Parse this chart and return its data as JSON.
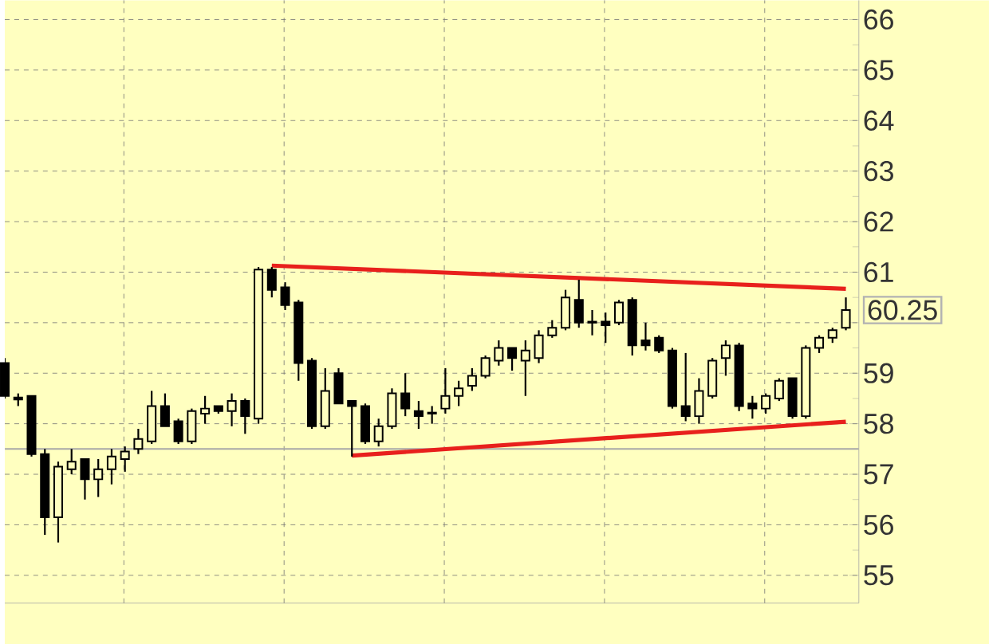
{
  "chart_data": {
    "type": "candlestick",
    "categories": [
      null,
      null,
      null,
      null,
      null,
      null,
      null,
      null,
      null,
      null,
      null,
      null,
      null,
      null,
      null,
      null,
      null,
      null,
      null,
      null,
      null,
      null,
      null,
      null,
      null,
      null,
      null,
      null,
      null,
      null,
      null,
      null,
      null,
      null,
      null,
      null,
      null,
      null,
      null,
      null,
      null,
      null,
      null,
      null,
      null,
      null,
      null,
      null,
      null,
      null,
      null,
      null,
      null,
      null,
      null,
      null,
      null,
      null,
      null,
      null,
      null,
      null,
      null,
      null
    ],
    "ohlc": [
      [
        59.2,
        59.3,
        58.5,
        58.55
      ],
      [
        58.52,
        58.6,
        58.35,
        58.48
      ],
      [
        58.55,
        58.55,
        57.35,
        57.4
      ],
      [
        57.4,
        57.5,
        55.8,
        56.15
      ],
      [
        56.15,
        57.25,
        55.65,
        57.15
      ],
      [
        57.1,
        57.5,
        57.0,
        57.25
      ],
      [
        57.3,
        57.3,
        56.5,
        56.9
      ],
      [
        56.9,
        57.3,
        56.55,
        57.1
      ],
      [
        57.1,
        57.5,
        56.8,
        57.35
      ],
      [
        57.3,
        57.55,
        57.05,
        57.45
      ],
      [
        57.5,
        57.9,
        57.4,
        57.7
      ],
      [
        57.65,
        58.65,
        57.6,
        58.35
      ],
      [
        58.35,
        58.6,
        57.95,
        57.95
      ],
      [
        58.05,
        58.1,
        57.6,
        57.65
      ],
      [
        57.65,
        58.3,
        57.6,
        58.25
      ],
      [
        58.2,
        58.55,
        58.0,
        58.3
      ],
      [
        58.35,
        58.35,
        58.2,
        58.25
      ],
      [
        58.25,
        58.6,
        57.95,
        58.45
      ],
      [
        58.45,
        58.5,
        57.8,
        58.15
      ],
      [
        58.1,
        61.1,
        58.0,
        61.05
      ],
      [
        61.05,
        61.1,
        60.5,
        60.65
      ],
      [
        60.7,
        60.8,
        60.25,
        60.35
      ],
      [
        60.4,
        60.45,
        58.85,
        59.2
      ],
      [
        59.25,
        59.3,
        57.9,
        57.95
      ],
      [
        57.95,
        59.1,
        57.9,
        58.65
      ],
      [
        59.0,
        59.1,
        58.4,
        58.4
      ],
      [
        58.45,
        58.45,
        57.35,
        58.35
      ],
      [
        58.35,
        58.4,
        57.6,
        57.65
      ],
      [
        57.65,
        58.1,
        57.55,
        57.95
      ],
      [
        57.95,
        58.7,
        57.9,
        58.6
      ],
      [
        58.6,
        59.0,
        58.15,
        58.3
      ],
      [
        58.25,
        58.45,
        57.9,
        58.15
      ],
      [
        58.22,
        58.35,
        58.0,
        58.2
      ],
      [
        58.3,
        59.1,
        58.2,
        58.55
      ],
      [
        58.55,
        58.85,
        58.35,
        58.7
      ],
      [
        58.75,
        59.1,
        58.65,
        58.95
      ],
      [
        58.95,
        59.35,
        58.9,
        59.3
      ],
      [
        59.25,
        59.65,
        59.15,
        59.5
      ],
      [
        59.5,
        59.5,
        59.05,
        59.3
      ],
      [
        59.25,
        59.65,
        58.55,
        59.45
      ],
      [
        59.3,
        59.85,
        59.2,
        59.75
      ],
      [
        59.75,
        60.05,
        59.7,
        59.9
      ],
      [
        59.9,
        60.65,
        59.85,
        60.5
      ],
      [
        60.45,
        60.85,
        59.9,
        60.0
      ],
      [
        60.02,
        60.25,
        59.75,
        60.0
      ],
      [
        60.02,
        60.2,
        59.6,
        59.95
      ],
      [
        60.0,
        60.45,
        59.95,
        60.4
      ],
      [
        60.45,
        60.5,
        59.35,
        59.55
      ],
      [
        59.65,
        60.0,
        59.45,
        59.55
      ],
      [
        59.7,
        59.75,
        59.4,
        59.45
      ],
      [
        59.45,
        59.5,
        58.3,
        58.35
      ],
      [
        58.35,
        59.4,
        58.05,
        58.15
      ],
      [
        58.15,
        58.9,
        58.0,
        58.65
      ],
      [
        58.55,
        59.3,
        58.5,
        59.25
      ],
      [
        59.3,
        59.65,
        58.95,
        59.55
      ],
      [
        59.55,
        59.6,
        58.25,
        58.35
      ],
      [
        58.4,
        58.55,
        58.1,
        58.3
      ],
      [
        58.3,
        58.6,
        58.2,
        58.55
      ],
      [
        58.5,
        58.9,
        58.45,
        58.85
      ],
      [
        58.9,
        58.9,
        58.1,
        58.15
      ],
      [
        58.15,
        59.55,
        58.1,
        59.5
      ],
      [
        59.5,
        59.75,
        59.4,
        59.7
      ],
      [
        59.7,
        59.9,
        59.6,
        59.85
      ],
      [
        59.9,
        60.5,
        59.85,
        60.25
      ]
    ],
    "color": "#000000",
    "series": [
      {
        "type": "line",
        "values": [
          null,
          null,
          null,
          null,
          null,
          null,
          null,
          null,
          null,
          null,
          null,
          null,
          null,
          null,
          null,
          null,
          null,
          null,
          null,
          null,
          61.13,
          null,
          null,
          null,
          null,
          null,
          null,
          null,
          null,
          null,
          null,
          null,
          null,
          null,
          null,
          null,
          null,
          null,
          null,
          null,
          null,
          null,
          null,
          null,
          null,
          null,
          null,
          null,
          null,
          null,
          null,
          null,
          null,
          null,
          null,
          null,
          null,
          null,
          null,
          null,
          null,
          null,
          null,
          60.67
        ],
        "color": "#e8201c"
      },
      {
        "type": "line",
        "values": [
          null,
          null,
          null,
          null,
          null,
          null,
          null,
          null,
          null,
          null,
          null,
          null,
          null,
          null,
          null,
          null,
          null,
          null,
          null,
          null,
          null,
          null,
          null,
          null,
          null,
          null,
          57.37,
          null,
          null,
          null,
          null,
          null,
          null,
          null,
          null,
          null,
          null,
          null,
          null,
          null,
          null,
          null,
          null,
          null,
          null,
          null,
          null,
          null,
          null,
          null,
          null,
          null,
          null,
          null,
          null,
          null,
          null,
          null,
          null,
          null,
          null,
          null,
          null,
          58.04
        ],
        "color": "#e8201c"
      }
    ],
    "ylim": [
      54.45,
      66.38
    ],
    "yticks": [
      55,
      56,
      57,
      58,
      59,
      {
        "value": 60,
        "label": null
      },
      61,
      62,
      63,
      64,
      65,
      66
    ],
    "ref_lines": [
      {
        "axis": "y",
        "value": 57.5,
        "color": "#a8a8a8"
      }
    ],
    "annotations": [
      "60.25"
    ],
    "grid": true,
    "tick_labels": "y"
  }
}
